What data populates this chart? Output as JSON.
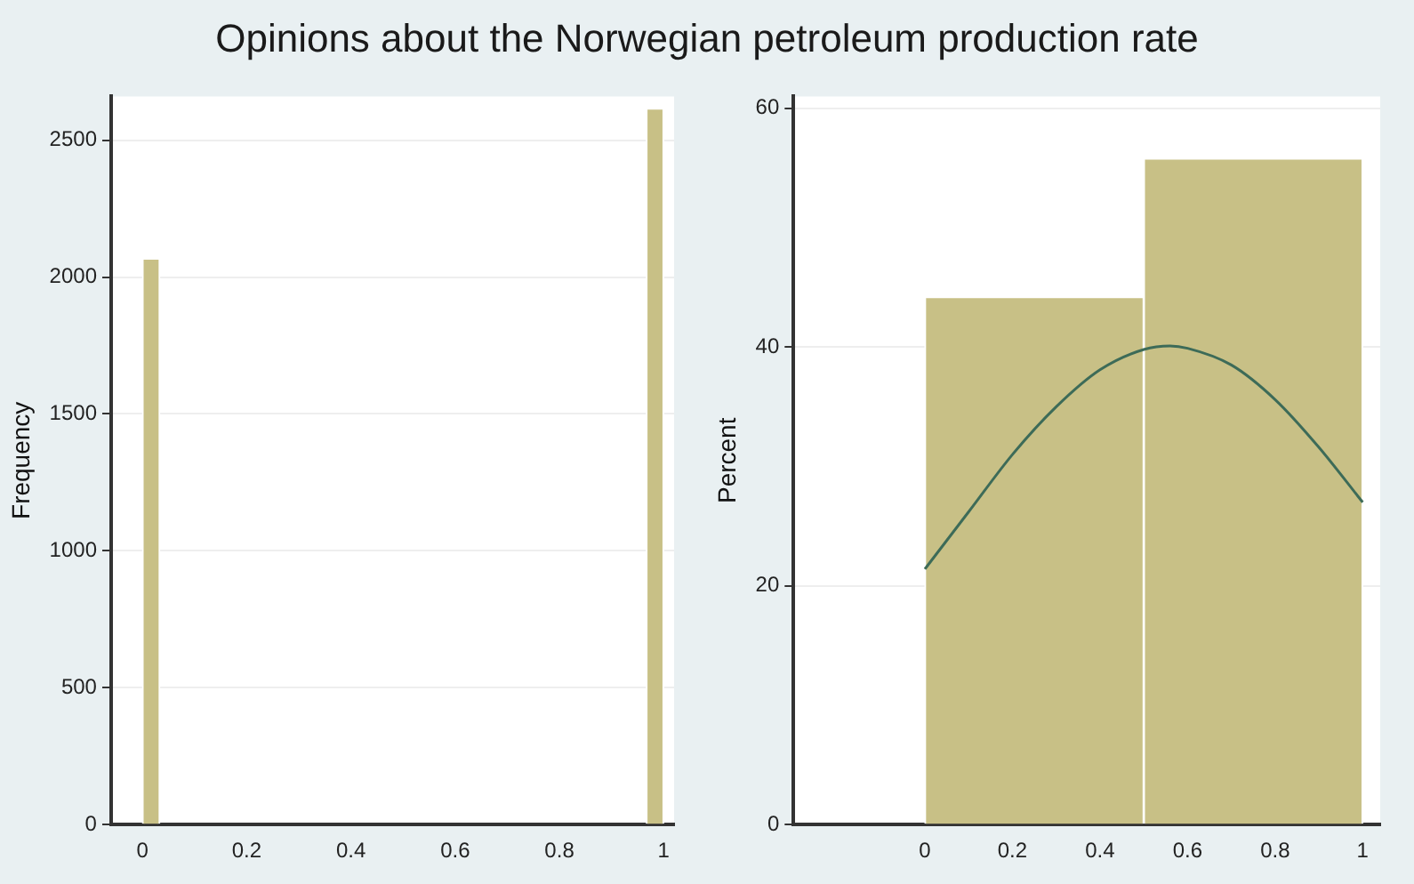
{
  "chart_data": [
    {
      "type": "histogram",
      "title": "Opinions about the Norwegian petroleum production rate",
      "ylabel": "Frequency",
      "bins": [
        0,
        0.0333,
        0.0667,
        0.1,
        0.1333,
        0.1667,
        0.2,
        0.2333,
        0.2667,
        0.3,
        0.3333,
        0.3667,
        0.4,
        0.4333,
        0.4667,
        0.5,
        0.5333,
        0.5667,
        0.6,
        0.6333,
        0.6667,
        0.7,
        0.7333,
        0.7667,
        0.8,
        0.8333,
        0.8667,
        0.9,
        0.9333,
        0.9667,
        1
      ],
      "values": [
        2068,
        0,
        0,
        0,
        0,
        0,
        0,
        0,
        0,
        0,
        0,
        0,
        0,
        0,
        0,
        0,
        0,
        0,
        0,
        0,
        0,
        0,
        0,
        0,
        0,
        0,
        0,
        0,
        0,
        2616
      ],
      "color": "#c8c086",
      "xlim": [
        -0.06,
        1.02
      ],
      "xticks": [
        0,
        0.2,
        0.4,
        0.6,
        0.8,
        1
      ],
      "ylim": [
        0,
        2660
      ],
      "yticks": [
        0,
        500,
        1000,
        1500,
        2000,
        2500
      ],
      "grid": "y"
    },
    {
      "type": "histogram",
      "ylabel": "Percent",
      "xlim": [
        -0.3,
        1.04
      ],
      "xticks": [
        0,
        0.2,
        0.4,
        0.6,
        0.8,
        1
      ],
      "ylim": [
        0,
        61
      ],
      "yticks": [
        0,
        20,
        40,
        60
      ],
      "grid": "y",
      "series": [
        {
          "bins": [
            0,
            0.5,
            1
          ],
          "values": [
            44.2,
            55.8
          ],
          "color": "#c8c086"
        },
        {
          "type": "line",
          "x": [
            0,
            0.1,
            0.2,
            0.3,
            0.4,
            0.5,
            0.56,
            0.6,
            0.7,
            0.8,
            0.9,
            1
          ],
          "values": [
            21.4,
            26.2,
            31.0,
            35.0,
            38.1,
            39.8,
            40.1,
            39.9,
            38.5,
            35.6,
            31.6,
            27.0
          ],
          "color": "#3d6b58"
        }
      ]
    }
  ]
}
